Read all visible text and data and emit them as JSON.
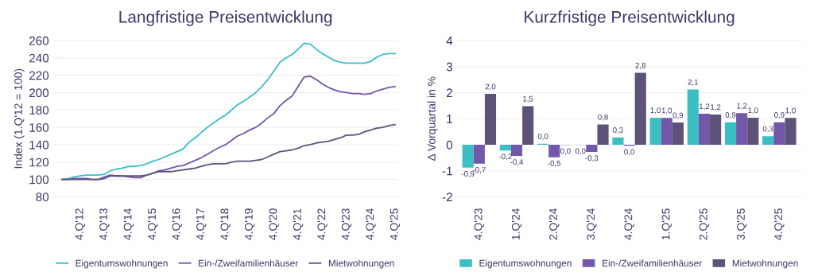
{
  "chart_data": [
    {
      "type": "line",
      "title": "Langfristige Preisentwicklung",
      "ylabel": "Index (1.Q'12 = 100)",
      "categories": [
        null,
        null,
        null,
        "4.Q'12",
        null,
        null,
        null,
        "4.Q'13",
        null,
        null,
        null,
        "4.Q'14",
        null,
        null,
        null,
        "4.Q'15",
        null,
        null,
        null,
        "4.Q'16",
        null,
        null,
        null,
        "4.Q'17",
        null,
        null,
        null,
        "4.Q'18",
        null,
        null,
        null,
        "4.Q'19",
        null,
        null,
        null,
        "4.Q'20",
        null,
        null,
        null,
        "4.Q'21",
        null,
        null,
        null,
        "4.Q'22",
        null,
        null,
        null,
        "4.Q'23",
        null,
        null,
        null,
        "4.Q'24",
        null,
        null,
        null,
        "4.Q'25"
      ],
      "series": [
        {
          "name": "Eigentumswohnungen",
          "color": "#3bbfc4",
          "values": [
            100,
            101,
            103,
            104,
            105,
            105,
            105,
            106,
            110,
            112,
            113,
            115,
            115,
            116,
            118,
            121,
            123,
            126,
            129,
            132,
            135,
            143,
            148,
            154,
            160,
            165,
            170,
            174,
            180,
            186,
            190,
            195,
            200,
            207,
            215,
            225,
            235,
            240,
            244,
            250,
            257,
            256,
            250,
            245,
            241,
            237,
            235,
            234,
            234,
            234,
            234,
            236,
            241,
            244,
            245,
            245
          ]
        },
        {
          "name": "Ein-/Zweifamilienhäuser",
          "color": "#7357a8",
          "values": [
            100,
            100,
            101,
            101,
            101,
            100,
            100,
            103,
            105,
            104,
            104,
            103,
            102,
            102,
            105,
            107,
            110,
            111,
            113,
            115,
            116,
            119,
            122,
            125,
            129,
            133,
            137,
            140,
            145,
            150,
            153,
            157,
            160,
            165,
            171,
            176,
            185,
            191,
            196,
            207,
            218,
            219,
            215,
            210,
            206,
            203,
            201,
            200,
            199,
            199,
            198,
            199,
            202,
            204,
            206,
            207
          ]
        },
        {
          "name": "Mietwohnungen",
          "color": "#5e5279",
          "values": [
            100,
            100,
            100,
            100,
            100,
            100,
            100,
            101,
            104,
            104,
            104,
            104,
            104,
            104,
            105,
            107,
            109,
            109,
            109,
            110,
            111,
            112,
            113,
            115,
            117,
            118,
            118,
            118,
            120,
            121,
            121,
            121,
            122,
            123,
            126,
            129,
            132,
            133,
            134,
            136,
            139,
            140,
            142,
            143,
            144,
            146,
            148,
            151,
            151,
            152,
            155,
            157,
            159,
            160,
            162,
            163
          ]
        }
      ],
      "ylim": [
        80,
        260
      ],
      "yticks": [
        80,
        100,
        120,
        140,
        160,
        180,
        200,
        220,
        240,
        260
      ],
      "grid": "y",
      "legend": "bottom"
    },
    {
      "type": "bar",
      "title": "Kurzfristige Preisentwicklung",
      "ylabel": "Δ Vorquartal in %",
      "categories": [
        "4.Q'23",
        "1.Q'24",
        "2.Q'24",
        "3.Q'24",
        "4.Q'24",
        "1.Q'25",
        "2.Q'25",
        "3.Q'25",
        "4.Q'25"
      ],
      "series": [
        {
          "name": "Eigentumswohnungen",
          "color": "#3bbfc4",
          "values": [
            -0.88,
            -0.22,
            0.04,
            -0.01,
            0.28,
            1.04,
            2.12,
            0.86,
            0.33
          ],
          "value_labels": [
            "-0,9",
            "-0,2",
            "0,0",
            "0,0",
            "0,3",
            "1,0",
            "2,1",
            "0,9",
            "0,3"
          ]
        },
        {
          "name": "Ein-/Zweifamilienhäuser",
          "color": "#7357a8",
          "values": [
            -0.73,
            -0.43,
            -0.48,
            -0.28,
            -0.04,
            1.03,
            1.19,
            1.21,
            0.86
          ],
          "value_labels": [
            "-0,7",
            "-0,4",
            "-0,5",
            "-0,3",
            "0,0",
            "1,0",
            "1,2",
            "1,2",
            "0,9"
          ]
        },
        {
          "name": "Mietwohnungen",
          "color": "#5e5279",
          "values": [
            1.95,
            1.48,
            -0.01,
            0.78,
            2.76,
            0.85,
            1.16,
            1.04,
            1.03
          ],
          "value_labels": [
            "2,0",
            "1,5",
            "0,0",
            "0,8",
            "2,8",
            "0,9",
            "1,2",
            "1,0",
            "1,0"
          ]
        }
      ],
      "ylim": [
        -2,
        4
      ],
      "yticks": [
        -2,
        -1,
        0,
        1,
        2,
        3,
        4
      ],
      "grid": "y",
      "legend": "bottom"
    }
  ]
}
